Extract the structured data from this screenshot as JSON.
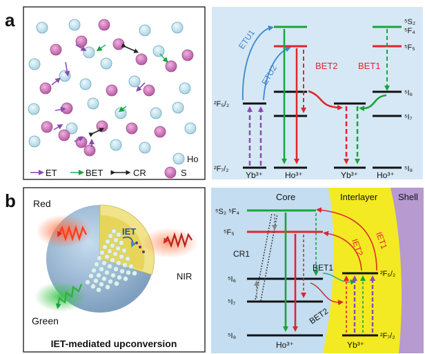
{
  "panel_a": {
    "label": "a",
    "legend": {
      "et": "ET",
      "bet": "BET",
      "cr": "CR",
      "ho": "Ho",
      "s": "S"
    },
    "levels": {
      "yb_upper": "²F₅/₂",
      "yb_lower": "²F₇/₂",
      "ho_5s2": "⁵S₂",
      "ho_5f4": "⁵F₄",
      "ho_5f5": "⁵F₅",
      "ho_5i6": "⁵I₆",
      "ho_5i7": "⁵I₇",
      "ho_5i8": "⁵I₈"
    },
    "transfers": {
      "etu1": "ETU1",
      "etu2": "ETU2",
      "bet2": "BET2",
      "bet1": "BET1"
    },
    "ions": {
      "yb_1": "Yb³⁺",
      "ho_1": "Ho³⁺",
      "yb_2": "Yb³⁺",
      "ho_2": "Ho³⁺"
    }
  },
  "panel_b": {
    "label": "b",
    "illustration": {
      "red": "Red",
      "green": "Green",
      "nir": "NIR",
      "iet": "IET",
      "caption": "IET-mediated upconversion"
    },
    "regions": {
      "core": "Core",
      "interlayer": "Interlayer",
      "shell": "Shell"
    },
    "levels": {
      "ho_5s2_5f4": "⁵S₂ ⁵F₄",
      "ho_5f5": "⁵F₅",
      "ho_5i6": "⁵I₆",
      "ho_5i7": "⁵I₇",
      "ho_5i8": "⁵I₈",
      "yb_upper": "²F₅/₂",
      "yb_lower": "²F₇/₂"
    },
    "transfers": {
      "cr1": "CR1",
      "bet1": "BET1",
      "bet2": "BET2",
      "iet1": "IET1",
      "iet2": "IET2"
    },
    "ions": {
      "ho": "Ho³⁺",
      "yb": "Yb³⁺"
    }
  },
  "colors": {
    "green": "#1aa33a",
    "red": "#e0252a",
    "purple": "#8b4ab0",
    "blue": "#3a86d4",
    "teal": "#23b07a",
    "panel_blue": "#d6e8f5",
    "ho_ball": "#cfe8f0",
    "s_ball": "#d685c0",
    "interlayer": "#f3ea23",
    "shell": "#b69ad0"
  }
}
